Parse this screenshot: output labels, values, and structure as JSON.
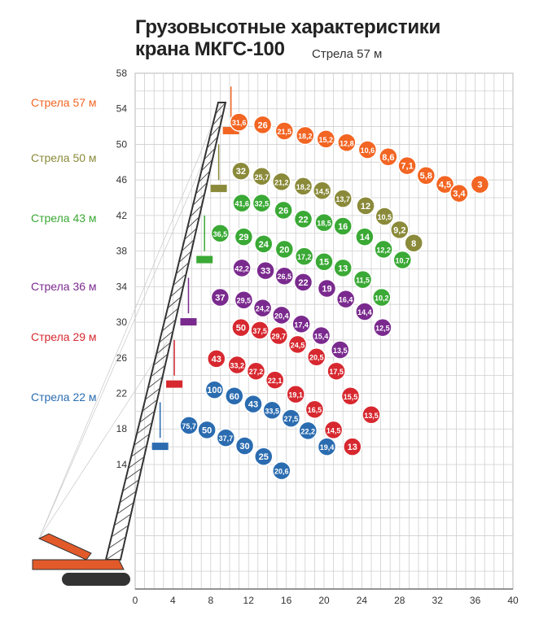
{
  "title_line1": "Грузовысотные характеристики",
  "title_line2": "крана МКГС-100",
  "subtitle": "Стрела 57 м",
  "chart_data": {
    "type": "scatter",
    "xlim": [
      0,
      40
    ],
    "ylim": [
      0,
      58
    ],
    "xticks": [
      "0",
      "4",
      "8",
      "12",
      "16",
      "20",
      "24",
      "28",
      "32",
      "36",
      "40"
    ],
    "yticks": [
      "14",
      "18",
      "22",
      "26",
      "30",
      "34",
      "38",
      "42",
      "46",
      "50",
      "54",
      "58"
    ],
    "grid": true,
    "series": [
      {
        "name": "Стрела 57 м",
        "color": "#f26522",
        "points": [
          {
            "x": 11.0,
            "y": 52.5,
            "label": "31,6"
          },
          {
            "x": 13.5,
            "y": 52.2,
            "label": "26"
          },
          {
            "x": 15.8,
            "y": 51.5,
            "label": "21,5"
          },
          {
            "x": 18.0,
            "y": 51.0,
            "label": "18,2"
          },
          {
            "x": 20.2,
            "y": 50.6,
            "label": "15,2"
          },
          {
            "x": 22.4,
            "y": 50.2,
            "label": "12,8"
          },
          {
            "x": 24.6,
            "y": 49.4,
            "label": "10,6"
          },
          {
            "x": 26.8,
            "y": 48.6,
            "label": "8,6"
          },
          {
            "x": 28.8,
            "y": 47.6,
            "label": "7,1"
          },
          {
            "x": 30.8,
            "y": 46.5,
            "label": "5,8"
          },
          {
            "x": 32.8,
            "y": 45.5,
            "label": "4,5"
          },
          {
            "x": 34.3,
            "y": 44.5,
            "label": "3,4"
          },
          {
            "x": 36.5,
            "y": 45.5,
            "label": "3"
          }
        ]
      },
      {
        "name": "Стрела 50 м",
        "color": "#8a8a3a",
        "points": [
          {
            "x": 11.2,
            "y": 47.0,
            "label": "32"
          },
          {
            "x": 13.4,
            "y": 46.4,
            "label": "25,7"
          },
          {
            "x": 15.5,
            "y": 45.8,
            "label": "21,2"
          },
          {
            "x": 17.8,
            "y": 45.3,
            "label": "18,2"
          },
          {
            "x": 19.8,
            "y": 44.8,
            "label": "14,5"
          },
          {
            "x": 22.0,
            "y": 43.9,
            "label": "13,7"
          },
          {
            "x": 24.4,
            "y": 43.1,
            "label": "12"
          },
          {
            "x": 26.4,
            "y": 41.9,
            "label": "10,5"
          },
          {
            "x": 28.0,
            "y": 40.4,
            "label": "9,2"
          },
          {
            "x": 29.5,
            "y": 38.9,
            "label": "8"
          }
        ]
      },
      {
        "name": "Стрела 43 м",
        "color": "#3aa935",
        "points": [
          {
            "x": 11.3,
            "y": 43.4,
            "label": "41,6"
          },
          {
            "x": 13.4,
            "y": 43.4,
            "label": "32,5"
          },
          {
            "x": 15.7,
            "y": 42.6,
            "label": "26"
          },
          {
            "x": 17.8,
            "y": 41.6,
            "label": "22"
          },
          {
            "x": 20.0,
            "y": 41.2,
            "label": "18,5"
          },
          {
            "x": 22.0,
            "y": 40.8,
            "label": "16"
          },
          {
            "x": 24.3,
            "y": 39.6,
            "label": "14"
          },
          {
            "x": 26.3,
            "y": 38.2,
            "label": "12,2"
          },
          {
            "x": 28.3,
            "y": 37.0,
            "label": "10,7"
          },
          {
            "x": 9.0,
            "y": 40.0,
            "label": "36,5"
          },
          {
            "x": 11.5,
            "y": 39.6,
            "label": "29"
          },
          {
            "x": 13.6,
            "y": 38.8,
            "label": "24"
          },
          {
            "x": 15.8,
            "y": 38.2,
            "label": "20"
          },
          {
            "x": 17.9,
            "y": 37.4,
            "label": "17,2"
          },
          {
            "x": 20.0,
            "y": 36.8,
            "label": "15"
          },
          {
            "x": 22.0,
            "y": 36.1,
            "label": "13"
          },
          {
            "x": 24.1,
            "y": 34.8,
            "label": "11,5"
          },
          {
            "x": 26.1,
            "y": 32.8,
            "label": "10,2"
          }
        ]
      },
      {
        "name": "Стрела 36 м",
        "color": "#7a2a8e",
        "points": [
          {
            "x": 11.3,
            "y": 36.1,
            "label": "42,2"
          },
          {
            "x": 13.8,
            "y": 35.8,
            "label": "33"
          },
          {
            "x": 15.8,
            "y": 35.2,
            "label": "26,5"
          },
          {
            "x": 17.8,
            "y": 34.5,
            "label": "22"
          },
          {
            "x": 20.3,
            "y": 33.8,
            "label": "19"
          },
          {
            "x": 22.3,
            "y": 32.6,
            "label": "16,4"
          },
          {
            "x": 24.3,
            "y": 31.2,
            "label": "14,4"
          },
          {
            "x": 26.2,
            "y": 29.4,
            "label": "12,5"
          },
          {
            "x": 9.0,
            "y": 32.8,
            "label": "37"
          },
          {
            "x": 11.5,
            "y": 32.5,
            "label": "29,5"
          },
          {
            "x": 13.5,
            "y": 31.6,
            "label": "24,2"
          },
          {
            "x": 15.5,
            "y": 30.8,
            "label": "20,4"
          },
          {
            "x": 17.6,
            "y": 29.8,
            "label": "17,4"
          },
          {
            "x": 19.7,
            "y": 28.5,
            "label": "15,4"
          },
          {
            "x": 21.7,
            "y": 26.9,
            "label": "13,5"
          }
        ]
      },
      {
        "name": "Стрела 29 м",
        "color": "#d7282f",
        "points": [
          {
            "x": 11.2,
            "y": 29.4,
            "label": "50"
          },
          {
            "x": 13.2,
            "y": 29.1,
            "label": "37,5"
          },
          {
            "x": 15.2,
            "y": 28.5,
            "label": "29,7"
          },
          {
            "x": 17.2,
            "y": 27.5,
            "label": "24,5"
          },
          {
            "x": 19.2,
            "y": 26.1,
            "label": "20,5"
          },
          {
            "x": 21.3,
            "y": 24.5,
            "label": "17,5"
          },
          {
            "x": 8.6,
            "y": 25.9,
            "label": "43"
          },
          {
            "x": 10.8,
            "y": 25.2,
            "label": "33,2"
          },
          {
            "x": 12.8,
            "y": 24.5,
            "label": "27,2"
          },
          {
            "x": 14.8,
            "y": 23.5,
            "label": "22,1"
          },
          {
            "x": 17.0,
            "y": 21.9,
            "label": "19,1"
          },
          {
            "x": 19.0,
            "y": 20.2,
            "label": "16,5"
          },
          {
            "x": 22.8,
            "y": 21.7,
            "label": "15,5"
          },
          {
            "x": 21.0,
            "y": 17.9,
            "label": "14,5"
          },
          {
            "x": 25.0,
            "y": 19.6,
            "label": "13,5"
          },
          {
            "x": 23.0,
            "y": 16.0,
            "label": "13"
          }
        ]
      },
      {
        "name": "Стрела 22 м",
        "color": "#2b6cb0",
        "points": [
          {
            "x": 8.4,
            "y": 22.4,
            "label": "100"
          },
          {
            "x": 10.5,
            "y": 21.7,
            "label": "60"
          },
          {
            "x": 12.5,
            "y": 20.8,
            "label": "43"
          },
          {
            "x": 14.5,
            "y": 20.1,
            "label": "33,5"
          },
          {
            "x": 16.5,
            "y": 19.2,
            "label": "27,5"
          },
          {
            "x": 18.3,
            "y": 17.8,
            "label": "22,2"
          },
          {
            "x": 20.3,
            "y": 16.0,
            "label": "19,4"
          },
          {
            "x": 5.7,
            "y": 18.4,
            "label": "75,7"
          },
          {
            "x": 7.6,
            "y": 17.9,
            "label": "50"
          },
          {
            "x": 9.6,
            "y": 17.0,
            "label": "37,7"
          },
          {
            "x": 11.6,
            "y": 16.1,
            "label": "30"
          },
          {
            "x": 13.6,
            "y": 14.9,
            "label": "25"
          },
          {
            "x": 15.5,
            "y": 13.3,
            "label": "20,6"
          }
        ]
      }
    ]
  }
}
